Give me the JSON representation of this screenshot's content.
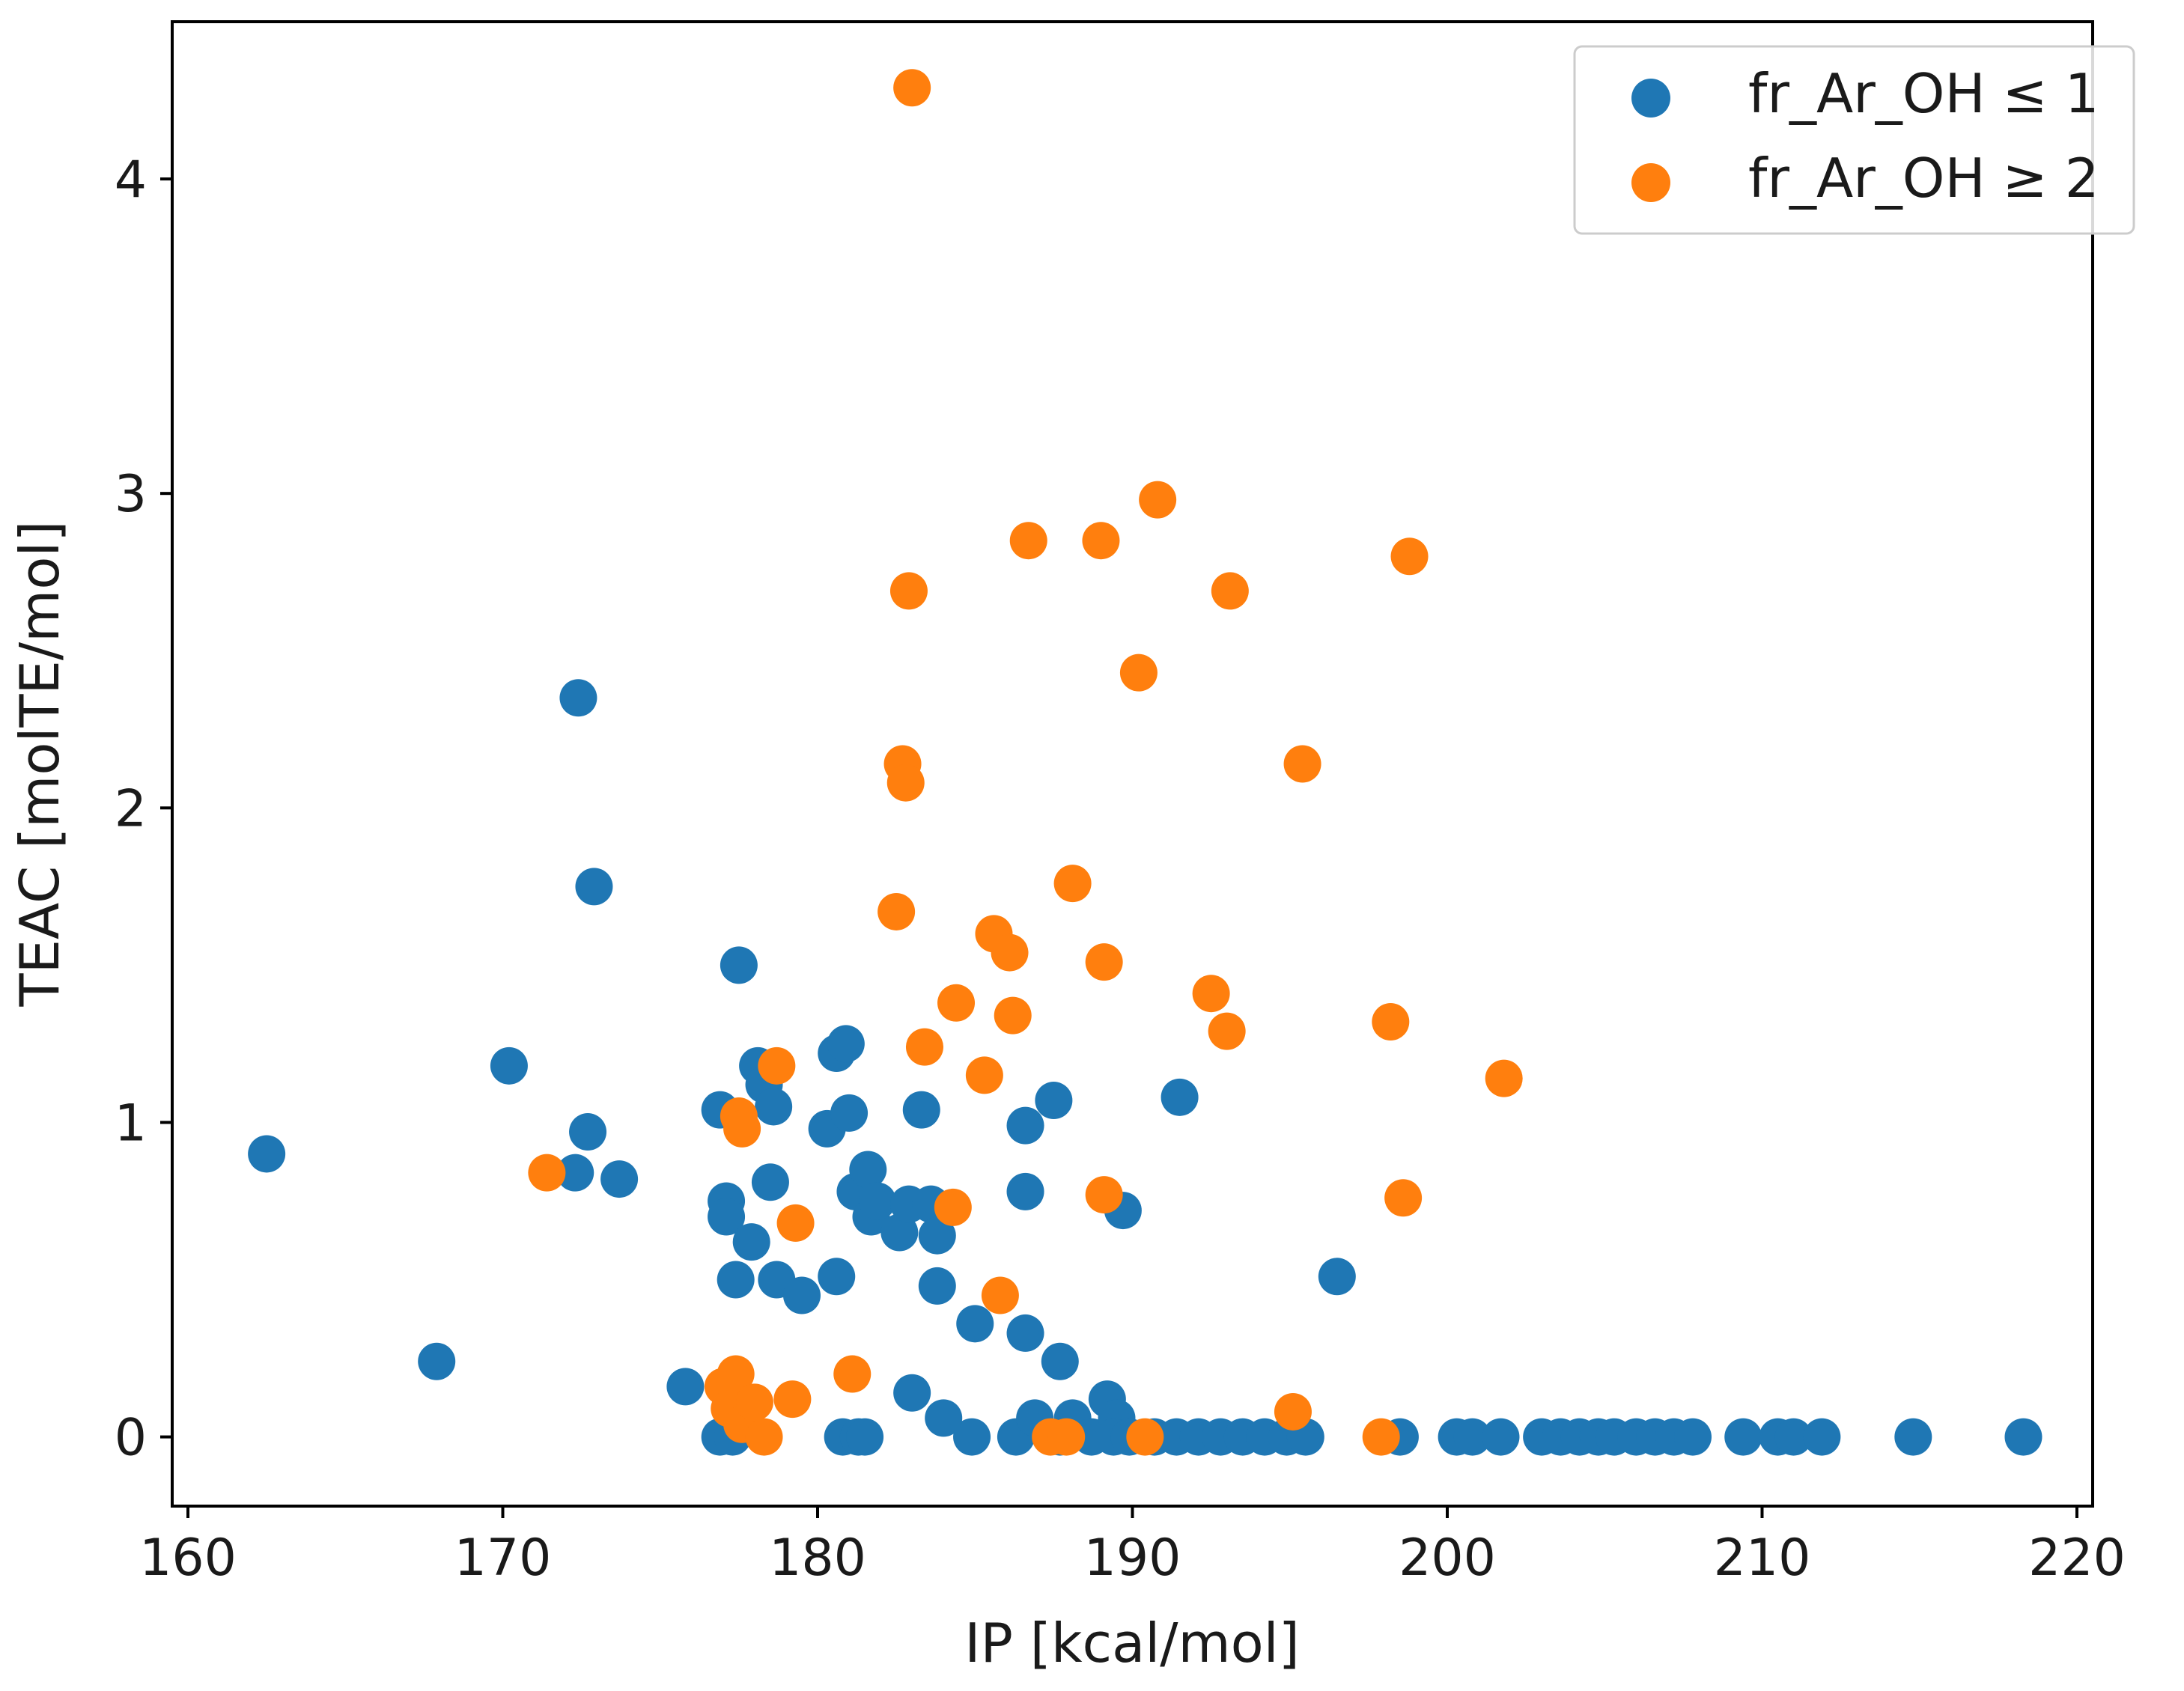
{
  "chart_data": {
    "type": "scatter",
    "title": "",
    "xlabel": "IP [kcal/mol]",
    "ylabel": "TEAC [molTE/mol]",
    "xlim": [
      159.5,
      220.5
    ],
    "ylim": [
      -0.22,
      4.5
    ],
    "xticks": [
      160,
      170,
      180,
      190,
      200,
      210,
      220
    ],
    "yticks": [
      0,
      1,
      2,
      3,
      4
    ],
    "grid": false,
    "legend_position": "top-right",
    "series": [
      {
        "name": "fr_Ar_OH ≤ 1",
        "color": "#1f77b4",
        "points": [
          [
            162.5,
            0.9
          ],
          [
            167.9,
            0.24
          ],
          [
            170.2,
            1.18
          ],
          [
            172.4,
            2.35
          ],
          [
            172.9,
            1.75
          ],
          [
            172.7,
            0.97
          ],
          [
            172.3,
            0.84
          ],
          [
            173.7,
            0.82
          ],
          [
            175.8,
            0.16
          ],
          [
            176.9,
            0.0
          ],
          [
            177.3,
            0.0
          ],
          [
            176.9,
            1.04
          ],
          [
            177.1,
            0.75
          ],
          [
            177.1,
            0.7
          ],
          [
            177.4,
            0.5
          ],
          [
            177.5,
            1.5
          ],
          [
            177.9,
            0.62
          ],
          [
            178.1,
            1.18
          ],
          [
            178.3,
            1.12
          ],
          [
            178.6,
            1.05
          ],
          [
            178.5,
            0.81
          ],
          [
            178.7,
            0.5
          ],
          [
            179.5,
            0.45
          ],
          [
            180.3,
            0.98
          ],
          [
            180.6,
            1.22
          ],
          [
            180.9,
            1.25
          ],
          [
            181.0,
            1.03
          ],
          [
            180.6,
            0.51
          ],
          [
            180.8,
            0.0
          ],
          [
            181.3,
            0.0
          ],
          [
            181.5,
            0.0
          ],
          [
            181.2,
            0.78
          ],
          [
            181.6,
            0.85
          ],
          [
            181.7,
            0.7
          ],
          [
            181.9,
            0.75
          ],
          [
            182.6,
            0.65
          ],
          [
            182.9,
            0.74
          ],
          [
            183.0,
            0.14
          ],
          [
            183.3,
            1.04
          ],
          [
            183.6,
            0.74
          ],
          [
            183.8,
            0.64
          ],
          [
            183.8,
            0.48
          ],
          [
            184.0,
            0.06
          ],
          [
            184.9,
            0.0
          ],
          [
            185.0,
            0.36
          ],
          [
            186.3,
            0.0
          ],
          [
            186.6,
            0.78
          ],
          [
            186.6,
            0.99
          ],
          [
            186.6,
            0.33
          ],
          [
            186.9,
            0.06
          ],
          [
            187.5,
            1.07
          ],
          [
            187.7,
            0.24
          ],
          [
            188.1,
            0.06
          ],
          [
            187.7,
            0.0
          ],
          [
            188.7,
            0.0
          ],
          [
            189.2,
            0.12
          ],
          [
            189.5,
            0.06
          ],
          [
            189.7,
            0.72
          ],
          [
            189.4,
            0.0
          ],
          [
            189.9,
            0.0
          ],
          [
            190.7,
            0.0
          ],
          [
            191.5,
            1.08
          ],
          [
            191.4,
            0.0
          ],
          [
            192.1,
            0.0
          ],
          [
            192.8,
            0.0
          ],
          [
            193.5,
            0.0
          ],
          [
            194.2,
            0.0
          ],
          [
            194.9,
            0.0
          ],
          [
            195.5,
            0.0
          ],
          [
            196.5,
            0.51
          ],
          [
            198.5,
            0.0
          ],
          [
            200.3,
            0.0
          ],
          [
            200.8,
            0.0
          ],
          [
            201.7,
            0.0
          ],
          [
            203.0,
            0.0
          ],
          [
            203.6,
            0.0
          ],
          [
            204.2,
            0.0
          ],
          [
            204.8,
            0.0
          ],
          [
            205.3,
            0.0
          ],
          [
            206.0,
            0.0
          ],
          [
            206.6,
            0.0
          ],
          [
            207.2,
            0.0
          ],
          [
            207.8,
            0.0
          ],
          [
            209.4,
            0.0
          ],
          [
            210.5,
            0.0
          ],
          [
            211.0,
            0.0
          ],
          [
            211.9,
            0.0
          ],
          [
            214.8,
            0.0
          ],
          [
            218.3,
            0.0
          ]
        ]
      },
      {
        "name": "fr_Ar_OH ≥ 2",
        "color": "#ff7f0e",
        "points": [
          [
            171.4,
            0.84
          ],
          [
            177.0,
            0.16
          ],
          [
            177.2,
            0.09
          ],
          [
            177.4,
            0.2
          ],
          [
            177.6,
            0.04
          ],
          [
            178.0,
            0.11
          ],
          [
            178.3,
            0.0
          ],
          [
            177.5,
            1.02
          ],
          [
            177.6,
            0.98
          ],
          [
            178.7,
            1.18
          ],
          [
            179.2,
            0.12
          ],
          [
            179.3,
            0.68
          ],
          [
            181.1,
            0.2
          ],
          [
            182.5,
            1.67
          ],
          [
            182.7,
            2.14
          ],
          [
            182.8,
            2.08
          ],
          [
            182.9,
            2.69
          ],
          [
            183.0,
            4.29
          ],
          [
            183.4,
            1.24
          ],
          [
            184.4,
            1.38
          ],
          [
            184.3,
            0.73
          ],
          [
            185.3,
            1.15
          ],
          [
            185.6,
            1.6
          ],
          [
            185.8,
            0.45
          ],
          [
            186.1,
            1.54
          ],
          [
            186.2,
            1.34
          ],
          [
            186.7,
            2.85
          ],
          [
            187.4,
            0.0
          ],
          [
            187.9,
            0.0
          ],
          [
            188.1,
            1.76
          ],
          [
            189.0,
            2.85
          ],
          [
            189.1,
            1.51
          ],
          [
            189.1,
            0.77
          ],
          [
            190.2,
            2.43
          ],
          [
            190.4,
            0.0
          ],
          [
            190.8,
            2.98
          ],
          [
            192.5,
            1.41
          ],
          [
            193.0,
            1.29
          ],
          [
            193.1,
            2.69
          ],
          [
            195.1,
            0.08
          ],
          [
            195.4,
            2.14
          ],
          [
            197.9,
            0.0
          ],
          [
            198.2,
            1.32
          ],
          [
            198.6,
            0.76
          ],
          [
            198.8,
            2.8
          ],
          [
            201.8,
            1.14
          ]
        ]
      }
    ]
  }
}
